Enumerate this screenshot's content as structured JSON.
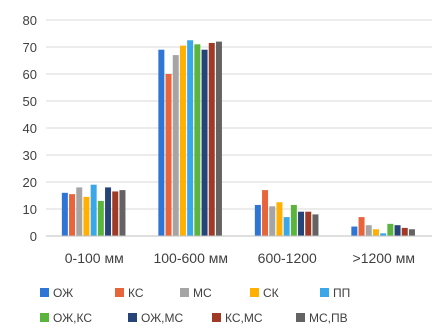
{
  "chart_data": {
    "type": "bar",
    "title": "",
    "xlabel": "",
    "ylabel": "",
    "ylim": [
      0,
      80
    ],
    "yticks": [
      0,
      10,
      20,
      30,
      40,
      50,
      60,
      70,
      80
    ],
    "grid": true,
    "legend_position": "bottom",
    "categories": [
      "0-100 мм",
      "100-600 мм",
      "600-1200",
      ">1200 мм"
    ],
    "series": [
      {
        "name": "ОЖ",
        "color": "#2e75d6",
        "values": [
          16,
          69,
          11.5,
          3.5
        ]
      },
      {
        "name": "КС",
        "color": "#e8643a",
        "values": [
          15.5,
          60,
          17,
          7
        ]
      },
      {
        "name": "МС",
        "color": "#a5a5a5",
        "values": [
          18,
          67,
          11,
          4
        ]
      },
      {
        "name": "СК",
        "color": "#ffb000",
        "values": [
          14.5,
          70.5,
          12.5,
          2.5
        ]
      },
      {
        "name": "ПП",
        "color": "#3aa7e8",
        "values": [
          19,
          72.5,
          7,
          1
        ]
      },
      {
        "name": "ОЖ,КС",
        "color": "#5bb53c",
        "values": [
          13,
          71,
          11.5,
          4.5
        ]
      },
      {
        "name": "ОЖ,МС",
        "color": "#264478",
        "values": [
          18,
          69,
          9,
          4
        ]
      },
      {
        "name": "КС,МС",
        "color": "#9e3a26",
        "values": [
          16.5,
          71.5,
          9,
          3
        ]
      },
      {
        "name": "МС,ПВ",
        "color": "#636363",
        "values": [
          17,
          72,
          8,
          2.5
        ]
      }
    ]
  }
}
